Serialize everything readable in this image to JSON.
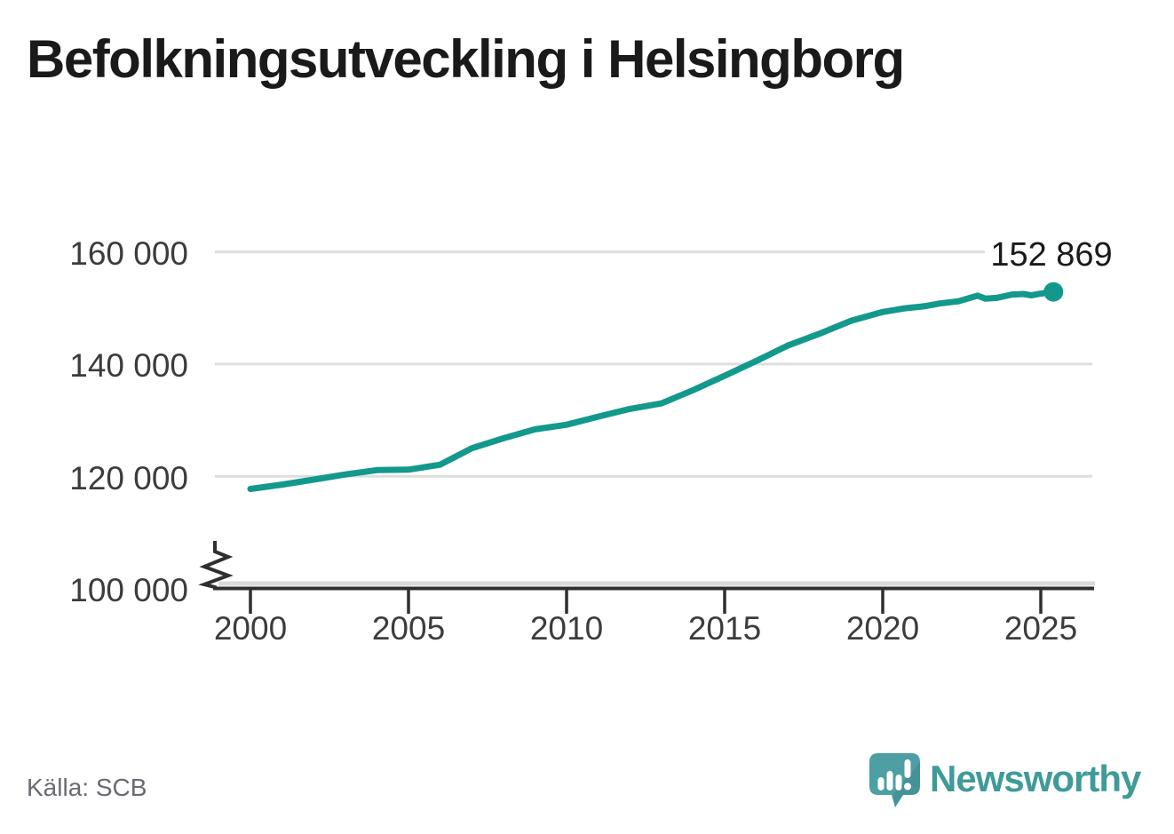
{
  "title": "Befolkningsutveckling i Helsingborg",
  "source": "Källa: SCB",
  "branding": {
    "wordmark": "Newsworthy",
    "logo_icon": "newsworthy-speech-bubble-bar-chart-icon"
  },
  "colors": {
    "line": "#12998c",
    "grid": "#dedede",
    "grid_band": "#d9d9d9",
    "axis": "#2f2f2f",
    "title_text": "#1a1a1a",
    "axis_text": "#3c3c3c",
    "source_text": "#6a6a72",
    "brand_teal": "#3f9b98",
    "logo_fill": "#4d9fa3",
    "background": "#ffffff"
  },
  "chart_data": {
    "type": "line",
    "title": "Befolkningsutveckling i Helsingborg",
    "xlabel": "",
    "ylabel": "",
    "grid": true,
    "legend": "none",
    "axis_break": true,
    "x_axis": {
      "ticks": [
        2000,
        2005,
        2010,
        2015,
        2020,
        2025
      ],
      "range": [
        1998.9,
        2026.6
      ]
    },
    "y_axis": {
      "ticks": [
        100000,
        120000,
        140000,
        160000
      ],
      "tick_labels": [
        "100 000",
        "120 000",
        "140 000",
        "160 000"
      ],
      "range_displayed": [
        100000,
        166000
      ]
    },
    "series": [
      {
        "points": [
          [
            2000,
            117737
          ],
          [
            2001,
            118511
          ],
          [
            2002,
            119406
          ],
          [
            2003,
            120317
          ],
          [
            2004,
            121097
          ],
          [
            2005,
            121179
          ],
          [
            2006,
            122062
          ],
          [
            2007,
            124986
          ],
          [
            2008,
            126754
          ],
          [
            2009,
            128359
          ],
          [
            2010,
            129177
          ],
          [
            2011,
            130626
          ],
          [
            2012,
            132011
          ],
          [
            2013,
            132989
          ],
          [
            2014,
            135344
          ],
          [
            2015,
            137909
          ],
          [
            2016,
            140547
          ],
          [
            2017,
            143304
          ],
          [
            2018,
            145415
          ],
          [
            2019,
            147734
          ],
          [
            2020,
            149280
          ],
          [
            2020.7,
            149950
          ],
          [
            2021.3,
            150300
          ],
          [
            2021.8,
            150800
          ],
          [
            2022.4,
            151200
          ],
          [
            2023.0,
            152200
          ],
          [
            2023.25,
            151650
          ],
          [
            2023.6,
            151800
          ],
          [
            2024.1,
            152400
          ],
          [
            2024.45,
            152500
          ],
          [
            2024.7,
            152250
          ],
          [
            2025.0,
            152550
          ],
          [
            2025.4,
            152869
          ]
        ]
      }
    ],
    "end_point": {
      "x": 2025.4,
      "y": 152869,
      "label": "152 869"
    }
  }
}
